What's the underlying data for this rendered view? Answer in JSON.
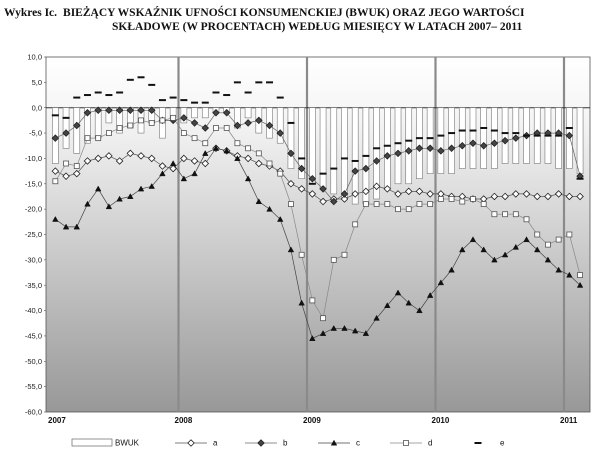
{
  "title": {
    "prefix": "Wykres Ic.",
    "line1": "BIEŻĄCY WSKAŹNIK UFNOŚCI KONSUMENCKIEJ (BWUK) ORAZ JEGO WARTOŚCI",
    "line2": "SKŁADOWE (W PROCENTACH) WEDŁUG MIESIĘCY W LATACH 2007– 2011"
  },
  "chart_data": {
    "type": "bar",
    "ylim": [
      -60,
      10
    ],
    "yticks": [
      "10,0",
      "5,0",
      "0,0",
      "-5,0",
      "-10,0",
      "-15,0",
      "-20,0",
      "-25,0",
      "-30,0",
      "-35,0",
      "-40,0",
      "-45,0",
      "-50,0",
      "-55,0",
      "-60,0"
    ],
    "ytick_values": [
      10,
      5,
      0,
      -5,
      -10,
      -15,
      -20,
      -25,
      -30,
      -35,
      -40,
      -45,
      -50,
      -55,
      -60
    ],
    "year_labels": [
      "2007",
      "2008",
      "2009",
      "2010",
      "2011"
    ],
    "months_per_year": 12,
    "n_points": 50,
    "grid": false,
    "legend_position": "bottom",
    "series": [
      {
        "name": "BWUK",
        "kind": "bar",
        "color": "#ffffff",
        "values": [
          -11,
          -8,
          -9,
          -7,
          -6,
          -3,
          -5,
          -4,
          -5,
          -3,
          -6,
          -2,
          -3,
          -2,
          -2,
          -1,
          -1,
          -4,
          -2,
          -5,
          -6,
          -7,
          -12,
          -14,
          -15,
          -16,
          -17,
          -18,
          -19,
          -19,
          -18,
          -16,
          -15,
          -15,
          -14,
          -13,
          -13,
          -13,
          -12,
          -12,
          -12,
          -12,
          -11,
          -11,
          -11,
          -11,
          -11,
          -12,
          -12,
          -13
        ]
      },
      {
        "name": "a",
        "kind": "line",
        "marker": "diamond-open",
        "color": "#555555",
        "values": [
          -12.5,
          -13.5,
          -13,
          -10.5,
          -10,
          -9.5,
          -10.5,
          -9,
          -9.5,
          -10,
          -11.5,
          -12,
          -10,
          -10.5,
          -11,
          -8,
          -8.5,
          -9.5,
          -10,
          -11,
          -11.5,
          -12.5,
          -15,
          -16,
          -17,
          -18.5,
          -18,
          -18,
          -17,
          -16.5,
          -15.5,
          -16,
          -17,
          -16.5,
          -16.5,
          -17,
          -17,
          -17.5,
          -17.5,
          -18,
          -18,
          -17.5,
          -17.5,
          -17,
          -17,
          -17.5,
          -17.5,
          -17,
          -17.5,
          -17.5
        ]
      },
      {
        "name": "b",
        "kind": "line",
        "marker": "diamond-filled",
        "color": "#666666",
        "values": [
          -6,
          -5,
          -3.5,
          -1,
          -0.5,
          -0.5,
          -0.5,
          -0.5,
          -0.5,
          -0.5,
          -2.5,
          -2.5,
          -2,
          -3,
          -4,
          -1,
          -1,
          -3.5,
          -3,
          -2.5,
          -3.5,
          -5,
          -9,
          -12,
          -14,
          -16,
          -18.5,
          -17,
          -12.5,
          -12,
          -10.5,
          -9.5,
          -9,
          -8.5,
          -8,
          -8,
          -8.5,
          -8,
          -7.5,
          -7,
          -7.5,
          -7,
          -6.5,
          -6,
          -5.5,
          -5,
          -5,
          -5,
          -5.5,
          -13.5
        ]
      },
      {
        "name": "c",
        "kind": "line",
        "marker": "triangle-filled",
        "color": "#444444",
        "values": [
          -22,
          -23.5,
          -23.5,
          -19,
          -16,
          -19.5,
          -18,
          -17.5,
          -16,
          -15.5,
          -13,
          -11,
          -14,
          -13,
          -9,
          -8,
          -8.5,
          -10,
          -14,
          -18.5,
          -20,
          -22,
          -28,
          -38.5,
          -45.5,
          -44.5,
          -43.5,
          -43.5,
          -44,
          -44.5,
          -41.5,
          -39,
          -36.5,
          -38.5,
          -40,
          -37,
          -34.5,
          -32,
          -28,
          -26,
          -28,
          -30,
          -29,
          -27.5,
          -26,
          -28,
          -30,
          -32,
          -33,
          -35
        ]
      },
      {
        "name": "d",
        "kind": "line",
        "marker": "square-open",
        "color": "#888888",
        "values": [
          -14.5,
          -11,
          -11.5,
          -6,
          -6,
          -5,
          -4,
          -3.5,
          -2.5,
          -3,
          -2.5,
          -2,
          -5,
          -6,
          -7,
          -4,
          -4,
          -7,
          -8,
          -9,
          -11,
          -13,
          -19,
          -29,
          -38,
          -41.5,
          -30,
          -29,
          -23,
          -19,
          -19,
          -19,
          -20,
          -20,
          -19,
          -19,
          -18,
          -18,
          -18.5,
          -18,
          -19,
          -21,
          -21,
          -21,
          -22,
          -25,
          -27,
          -26,
          -25,
          -33
        ]
      },
      {
        "name": "e",
        "kind": "line",
        "marker": "dash",
        "color": "#777777",
        "values": [
          -1.5,
          -2,
          2,
          2.5,
          3,
          2.5,
          3,
          5.5,
          6,
          4.5,
          1.5,
          2,
          1.5,
          1,
          1,
          3,
          2.5,
          5,
          3,
          5,
          5,
          2,
          -3,
          -10,
          -15,
          -13,
          -12,
          -10,
          -10.5,
          -9.5,
          -8,
          -7.5,
          -7,
          -6.5,
          -6,
          -6,
          -5.5,
          -5,
          -4.5,
          -4.5,
          -4,
          -4.5,
          -5,
          -5,
          -5.5,
          -5.5,
          -5.5,
          -5.5,
          -4,
          -14
        ]
      }
    ]
  }
}
